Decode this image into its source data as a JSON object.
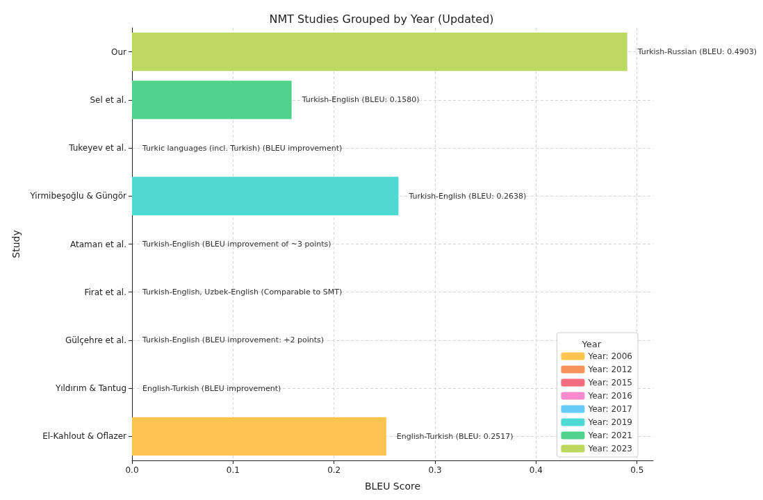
{
  "chart_data": {
    "type": "bar",
    "orientation": "horizontal",
    "title": "NMT Studies Grouped by Year (Updated)",
    "xlabel": "BLEU Score",
    "ylabel": "Study",
    "legend_title": "Year",
    "legend": "bottom right",
    "grid": true,
    "categories": [
      "Our",
      "Sel et al.",
      "Tukeyev et al.",
      "Yirmibeşoğlu & Güngör",
      "Ataman et al.",
      "Firat et al.",
      "Gülçehre et al.",
      "Yıldırım & Tantug",
      "El-Kahlout & Oflazer"
    ],
    "xlim": [
      0,
      0.516
    ],
    "xticks": [
      {
        "value": 0,
        "label": "0.0"
      },
      {
        "value": 0.1,
        "label": "0.1"
      },
      {
        "value": 0.2,
        "label": "0.2"
      },
      {
        "value": 0.3,
        "label": "0.3"
      },
      {
        "value": 0.4,
        "label": "0.4"
      },
      {
        "value": 0.5,
        "label": "0.5"
      }
    ],
    "annotations": [
      "Turkic languages (incl. Turkish) (BLEU improvement)",
      "Turkish-English (BLEU improvement of ~3 points)",
      "Turkish-English, Uzbek-English (Comparable to SMT)",
      "Turkish-English (BLEU improvement: +2 points)",
      "English-Turkish (BLEU improvement)"
    ],
    "series": [
      {
        "name": "Year: 2006",
        "color": "#fdc44f",
        "values": [
          null,
          null,
          null,
          null,
          null,
          null,
          null,
          null,
          0.2517
        ],
        "value_labels": [
          null,
          null,
          null,
          null,
          null,
          null,
          null,
          null,
          "English-Turkish (BLEU: 0.2517)"
        ]
      },
      {
        "name": "Year: 2012",
        "color": "#f6935a",
        "values": [
          null,
          null,
          null,
          null,
          null,
          null,
          null,
          null,
          null
        ]
      },
      {
        "name": "Year: 2015",
        "color": "#f56e7f",
        "values": [
          null,
          null,
          null,
          null,
          null,
          null,
          null,
          null,
          null
        ]
      },
      {
        "name": "Year: 2016",
        "color": "#f78bd0",
        "values": [
          null,
          null,
          null,
          null,
          null,
          null,
          null,
          null,
          null
        ]
      },
      {
        "name": "Year: 2017",
        "color": "#66ccf8",
        "values": [
          null,
          null,
          null,
          null,
          null,
          null,
          null,
          null,
          null
        ]
      },
      {
        "name": "Year: 2019",
        "color": "#4fd9d3",
        "values": [
          null,
          null,
          null,
          0.2638,
          null,
          null,
          null,
          null,
          null
        ],
        "value_labels": [
          null,
          null,
          null,
          "Turkish-English (BLEU: 0.2638)",
          null,
          null,
          null,
          null,
          null
        ]
      },
      {
        "name": "Year: 2021",
        "color": "#4fd38a",
        "values": [
          null,
          0.158,
          null,
          null,
          null,
          null,
          null,
          null,
          null
        ],
        "value_labels": [
          null,
          "Turkish-English (BLEU: 0.1580)",
          null,
          null,
          null,
          null,
          null,
          null,
          null
        ]
      },
      {
        "name": "Year: 2023",
        "color": "#bbd960",
        "values": [
          0.4903,
          null,
          null,
          null,
          null,
          null,
          null,
          null,
          null
        ],
        "value_labels": [
          "Turkish-Russian (BLEU: 0.4903)",
          null,
          null,
          null,
          null,
          null,
          null,
          null,
          null
        ]
      }
    ]
  }
}
